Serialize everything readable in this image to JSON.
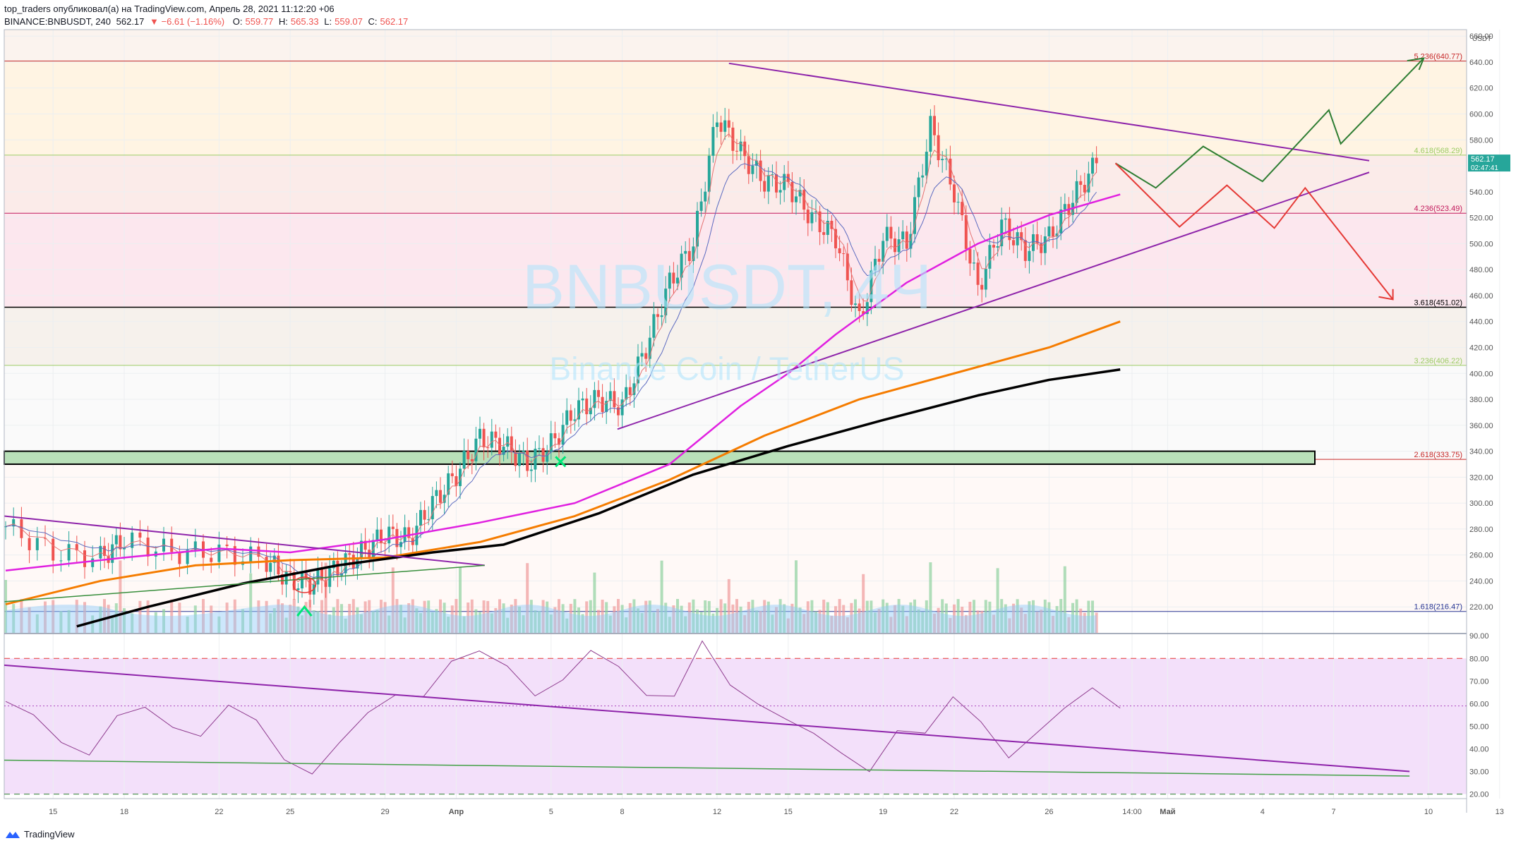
{
  "header": {
    "publisher_line": "top_traders опубликовал(а) на TradingView.com, Апрель 28, 2021 11:12:20 +06",
    "symbol": "BINANCE:BNBUSDT, 240",
    "last": "562.17",
    "change": "−6.61 (−1.16%)",
    "o_label": "O:",
    "o_value": "559.77",
    "h_label": "H:",
    "h_value": "565.33",
    "l_label": "L:",
    "l_value": "559.07",
    "c_label": "C:",
    "c_value": "562.17"
  },
  "watermark": {
    "ticker": "BNBUSDT, 4Ч",
    "name": "Binance Coin / TetherUS"
  },
  "footer": {
    "brand": "TradingView"
  },
  "colors": {
    "up": "#26a69a",
    "down": "#ef5350",
    "ma_magenta": "#e020e0",
    "ma_orange": "#f57c00",
    "ma_black": "#000000",
    "trend_purple": "#8e24aa",
    "green_path": "#2e7d32",
    "red_path": "#e53935",
    "rsi_line": "#8e3b8e"
  },
  "chart_data": [
    {
      "type": "line",
      "title": "BINANCE:BNBUSDT, 240",
      "currency": "USDT",
      "y_ticks": [
        "660.00",
        "640.00",
        "620.00",
        "600.00",
        "580.00",
        "560.00",
        "540.00",
        "520.00",
        "500.00",
        "480.00",
        "460.00",
        "440.00",
        "420.00",
        "400.00",
        "380.00",
        "360.00",
        "340.00",
        "320.00",
        "300.00",
        "280.00",
        "260.00",
        "240.00",
        "220.00"
      ],
      "ylim": [
        200,
        665
      ],
      "x_ticks": [
        "15",
        "18",
        "22",
        "25",
        "29",
        "Апр",
        "5",
        "8",
        "12",
        "15",
        "19",
        "22",
        "26",
        "14:00",
        "Май",
        "4",
        "7",
        "10",
        "13"
      ],
      "last_price": "562.17",
      "countdown": "02:47:41",
      "fib_levels": [
        {
          "label": "5.236(640.77)",
          "value": 640.77,
          "color": "#c62828"
        },
        {
          "label": "4.618(568.29)",
          "value": 568.29,
          "color": "#9ccc65"
        },
        {
          "label": "4.236(523.49)",
          "value": 523.49,
          "color": "#c2185b"
        },
        {
          "label": "3.618(451.02)",
          "value": 451.02,
          "color": "#000000"
        },
        {
          "label": "3.236(406.22)",
          "value": 406.22,
          "color": "#9ccc65"
        },
        {
          "label": "2.618(333.75)",
          "value": 333.75,
          "color": "#c62828"
        },
        {
          "label": "1.618(216.47)",
          "value": 216.47,
          "color": "#283593"
        }
      ],
      "close_series_approx": [
        {
          "x": "Mar 13",
          "y": 282
        },
        {
          "x": "Mar 15",
          "y": 262
        },
        {
          "x": "Mar 17",
          "y": 258
        },
        {
          "x": "Mar 18",
          "y": 272
        },
        {
          "x": "Mar 20",
          "y": 262
        },
        {
          "x": "Mar 22",
          "y": 262
        },
        {
          "x": "Mar 24",
          "y": 256
        },
        {
          "x": "Mar 25",
          "y": 240
        },
        {
          "x": "Mar 26",
          "y": 238
        },
        {
          "x": "Mar 27",
          "y": 250
        },
        {
          "x": "Mar 28",
          "y": 262
        },
        {
          "x": "Mar 29",
          "y": 276
        },
        {
          "x": "Mar 30",
          "y": 272
        },
        {
          "x": "Mar 31",
          "y": 300
        },
        {
          "x": "Apr 1",
          "y": 322
        },
        {
          "x": "Apr 2",
          "y": 350
        },
        {
          "x": "Apr 3",
          "y": 345
        },
        {
          "x": "Apr 4",
          "y": 330
        },
        {
          "x": "Apr 5",
          "y": 345
        },
        {
          "x": "Apr 6",
          "y": 372
        },
        {
          "x": "Apr 7",
          "y": 380
        },
        {
          "x": "Apr 8",
          "y": 375
        },
        {
          "x": "Apr 9",
          "y": 420
        },
        {
          "x": "Apr 10",
          "y": 470
        },
        {
          "x": "Apr 11",
          "y": 500
        },
        {
          "x": "Apr 12",
          "y": 598
        },
        {
          "x": "Apr 13",
          "y": 570
        },
        {
          "x": "Apr 14",
          "y": 548
        },
        {
          "x": "Apr 15",
          "y": 545
        },
        {
          "x": "Apr 16",
          "y": 520
        },
        {
          "x": "Apr 17",
          "y": 505
        },
        {
          "x": "Apr 18",
          "y": 440
        },
        {
          "x": "Apr 19",
          "y": 505
        },
        {
          "x": "Apr 20",
          "y": 500
        },
        {
          "x": "Apr 21",
          "y": 590
        },
        {
          "x": "Apr 22",
          "y": 540
        },
        {
          "x": "Apr 23",
          "y": 465
        },
        {
          "x": "Apr 24",
          "y": 515
        },
        {
          "x": "Apr 25",
          "y": 495
        },
        {
          "x": "Apr 26",
          "y": 505
        },
        {
          "x": "Apr 27",
          "y": 535
        },
        {
          "x": "Apr 28",
          "y": 562
        }
      ]
    },
    {
      "type": "line",
      "title": "RSI",
      "y_ticks": [
        "90.00",
        "80.00",
        "70.00",
        "60.00",
        "50.00",
        "40.00",
        "30.00",
        "20.00"
      ],
      "ylim": [
        18,
        91
      ],
      "bands": [
        80,
        20
      ],
      "mid_line": 59,
      "series": [
        {
          "values_approx": [
            61,
            55,
            43,
            37,
            55,
            58,
            50,
            45,
            60,
            52,
            36,
            28,
            44,
            55,
            65,
            62,
            80,
            82,
            78,
            62,
            72,
            82,
            78,
            62,
            65,
            86,
            70,
            58,
            55,
            45,
            40,
            28,
            50,
            45,
            65,
            50,
            38,
            45,
            60,
            65,
            60
          ]
        }
      ]
    }
  ]
}
